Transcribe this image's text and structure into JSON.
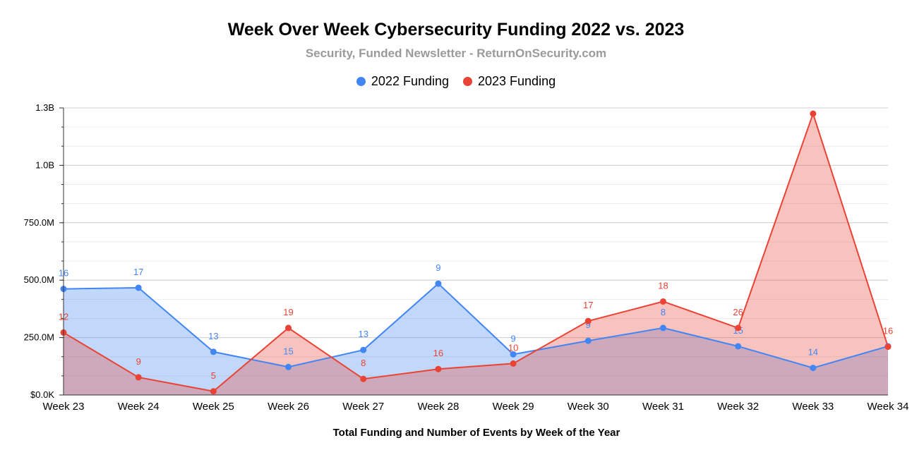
{
  "chart_data": {
    "type": "area",
    "title": "Week Over Week Cybersecurity Funding 2022 vs. 2023",
    "subtitle": "Security, Funded Newsletter - ReturnOnSecurity.com",
    "xlabel": "Total Funding and Number of Events by Week of the Year",
    "ylabel": "",
    "categories": [
      "Week 23",
      "Week 24",
      "Week 25",
      "Week 26",
      "Week 27",
      "Week 28",
      "Week 29",
      "Week 30",
      "Week 31",
      "Week 32",
      "Week 33",
      "Week 34"
    ],
    "ylim": [
      0,
      1250000000
    ],
    "yticks": [
      0,
      250000000,
      500000000,
      750000000,
      1000000000,
      1250000000
    ],
    "ytick_labels": [
      "$0.0K",
      "250.0M",
      "500.0M",
      "750.0M",
      "1.0B",
      "1.3B"
    ],
    "grid": true,
    "legend_position": "top-center",
    "series": [
      {
        "name": "2022 Funding",
        "color": "#4285f4",
        "fill": "rgba(66,133,244,0.32)",
        "values": [
          462000000,
          467000000,
          188000000,
          122000000,
          196000000,
          485000000,
          177000000,
          236000000,
          292000000,
          212000000,
          118000000,
          212000000
        ],
        "labels": [
          "16",
          "17",
          "13",
          "15",
          "13",
          "9",
          "9",
          "9",
          "8",
          "15",
          "14",
          ""
        ]
      },
      {
        "name": "2023 Funding",
        "color": "#ea4335",
        "fill": "rgba(234,67,53,0.32)",
        "values": [
          272000000,
          77000000,
          16000000,
          292000000,
          70000000,
          113000000,
          137000000,
          322000000,
          407000000,
          292000000,
          1225000000,
          210000000
        ],
        "labels": [
          "12",
          "9",
          "5",
          "19",
          "8",
          "16",
          "10",
          "17",
          "18",
          "26",
          "",
          "16"
        ]
      }
    ]
  }
}
